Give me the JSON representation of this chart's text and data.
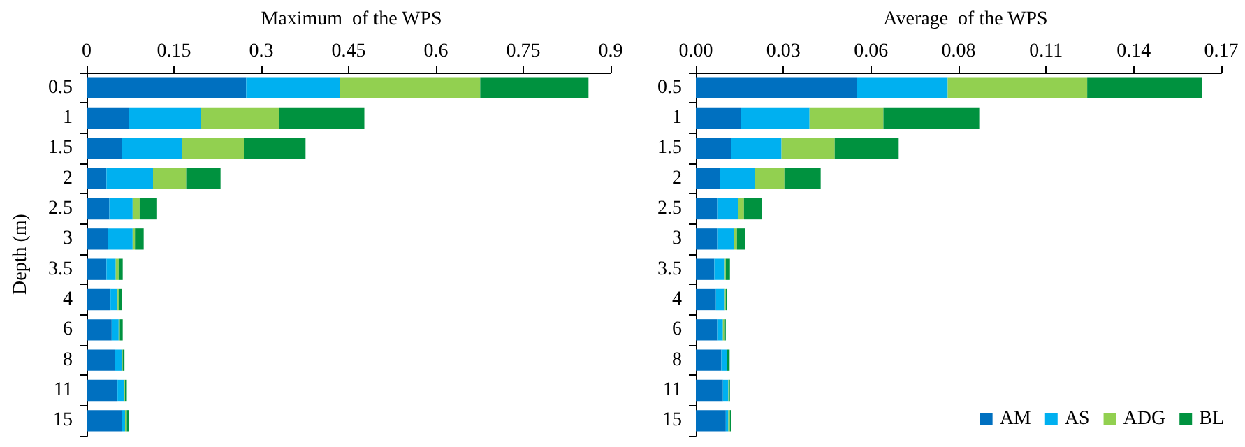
{
  "chart_data": [
    {
      "type": "bar",
      "orientation": "horizontal",
      "stacked": true,
      "title": "Maximum  of the WPS",
      "ylabel": "Depth (m)",
      "categories": [
        "0.5",
        "1",
        "1.5",
        "2",
        "2.5",
        "3",
        "3.5",
        "4",
        "6",
        "8",
        "11",
        "15"
      ],
      "series": [
        {
          "color": "#0070c0",
          "values": [
            0.274,
            0.072,
            0.06,
            0.034,
            0.039,
            0.036,
            0.034,
            0.041,
            0.043,
            0.048,
            0.053,
            0.06
          ]
        },
        {
          "color": "#00b0f0",
          "values": [
            0.161,
            0.124,
            0.104,
            0.08,
            0.04,
            0.043,
            0.016,
            0.012,
            0.012,
            0.012,
            0.012,
            0.006
          ]
        },
        {
          "color": "#92d050",
          "values": [
            0.241,
            0.135,
            0.106,
            0.057,
            0.012,
            0.004,
            0.005,
            0.002,
            0.002,
            0.002,
            0.001,
            0.003
          ]
        },
        {
          "color": "#00923f",
          "values": [
            0.186,
            0.146,
            0.106,
            0.059,
            0.03,
            0.015,
            0.007,
            0.005,
            0.005,
            0.003,
            0.003,
            0.003
          ]
        }
      ],
      "xlim": [
        0,
        0.9
      ],
      "xticks": [
        0,
        0.15,
        0.3,
        0.45,
        0.6,
        0.75,
        0.9
      ],
      "grid": false,
      "legend": false
    },
    {
      "type": "bar",
      "orientation": "horizontal",
      "stacked": true,
      "title": "Average  of the WPS",
      "categories": [
        "0.5",
        "1",
        "1.5",
        "2",
        "2.5",
        "3",
        "3.5",
        "4",
        "6",
        "8",
        "11",
        "15"
      ],
      "series": [
        {
          "name": "AM",
          "color": "#0070c0",
          "values": [
            0.0506,
            0.0142,
            0.0111,
            0.0076,
            0.0067,
            0.0067,
            0.0058,
            0.0063,
            0.0067,
            0.008,
            0.0085,
            0.0094
          ]
        },
        {
          "name": "AS",
          "color": "#00b0f0",
          "values": [
            0.0285,
            0.0215,
            0.0158,
            0.011,
            0.0066,
            0.0053,
            0.0031,
            0.0026,
            0.0018,
            0.0018,
            0.0017,
            0.0008
          ]
        },
        {
          "name": "ADG",
          "color": "#92d050",
          "values": [
            0.0438,
            0.0232,
            0.0167,
            0.0092,
            0.0018,
            0.0009,
            0.0005,
            0.0005,
            0.0004,
            null,
            0.0002,
            0.0005
          ]
        },
        {
          "name": "BL",
          "color": "#00923f",
          "values": [
            0.036,
            0.0301,
            0.0201,
            0.0114,
            0.0057,
            0.0026,
            0.0013,
            0.0004,
            0.0005,
            0.0008,
            0.0003,
            0.0004
          ]
        }
      ],
      "xlim": [
        0,
        0.165
      ],
      "xticks": [
        {
          "value": 0,
          "label": "0.00"
        },
        {
          "value": 0.0275,
          "label": "0.03"
        },
        {
          "value": 0.055,
          "label": "0.06"
        },
        {
          "value": 0.0825,
          "label": "0.08"
        },
        {
          "value": 0.11,
          "label": "0.11"
        },
        {
          "value": 0.1375,
          "label": "0.14"
        },
        {
          "value": 0.165,
          "label": "0.17"
        }
      ],
      "grid": false,
      "legend": "bottom right"
    }
  ]
}
